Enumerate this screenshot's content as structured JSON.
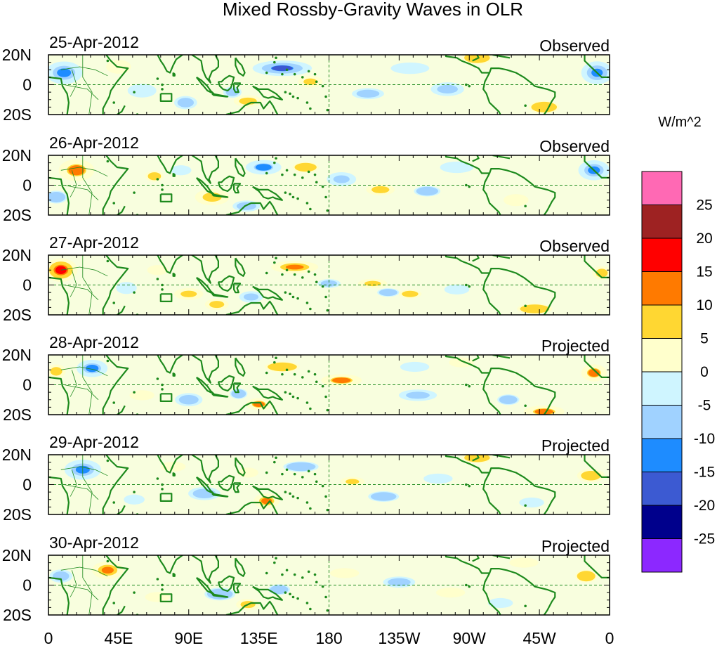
{
  "chart_data": {
    "type": "heatmap",
    "title": "Mixed Rossby-Gravity Waves in OLR",
    "colorbar": {
      "units": "W/m^2",
      "labels": [
        "25",
        "20",
        "15",
        "10",
        "5",
        "0",
        "-5",
        "-10",
        "-15",
        "-20",
        "-25"
      ],
      "colors": [
        "#ff69b4",
        "#9e2222",
        "#ff0000",
        "#ff7a00",
        "#ffd732",
        "#ffffcc",
        "#cff5ff",
        "#a0d2ff",
        "#1e8cff",
        "#3c5ad2",
        "#00008c",
        "#8c28ff"
      ]
    },
    "x_ticks": [
      "0",
      "45E",
      "90E",
      "135E",
      "180",
      "135W",
      "90W",
      "45W",
      "0"
    ],
    "y_ticks": [
      "20N",
      "0",
      "20S"
    ],
    "lat_range": [
      -20,
      20
    ],
    "lon_range": [
      0,
      360
    ],
    "panels": [
      {
        "date": "25-Apr-2012",
        "type": "Observed",
        "blobs": [
          {
            "lon": 10,
            "lat": 8,
            "v": -13,
            "w": 14,
            "h": 9
          },
          {
            "lon": 45,
            "lat": 12,
            "v": 5,
            "w": 12,
            "h": 7
          },
          {
            "lon": 88,
            "lat": -12,
            "v": -7,
            "w": 10,
            "h": 6
          },
          {
            "lon": 128,
            "lat": -11,
            "v": 8,
            "w": 12,
            "h": 5
          },
          {
            "lon": 118,
            "lat": -5,
            "v": -7,
            "w": 8,
            "h": 5
          },
          {
            "lon": 150,
            "lat": 11,
            "v": -16,
            "w": 22,
            "h": 6
          },
          {
            "lon": 168,
            "lat": 2,
            "v": 9,
            "w": 10,
            "h": 5
          },
          {
            "lon": 205,
            "lat": -6,
            "v": -7,
            "w": 14,
            "h": 5
          },
          {
            "lon": 256,
            "lat": -3,
            "v": -8,
            "w": 14,
            "h": 6
          },
          {
            "lon": 275,
            "lat": 18,
            "v": 6,
            "w": 14,
            "h": 6
          },
          {
            "lon": 318,
            "lat": -15,
            "v": 6,
            "w": 14,
            "h": 6
          },
          {
            "lon": 352,
            "lat": 8,
            "v": -14,
            "w": 12,
            "h": 9
          },
          {
            "lon": 60,
            "lat": -4,
            "v": -4,
            "w": 12,
            "h": 6
          },
          {
            "lon": 232,
            "lat": 11,
            "v": -4,
            "w": 16,
            "h": 5
          }
        ]
      },
      {
        "date": "26-Apr-2012",
        "type": "Observed",
        "blobs": [
          {
            "lon": 18,
            "lat": 10,
            "v": 11,
            "w": 14,
            "h": 9
          },
          {
            "lon": 5,
            "lat": -8,
            "v": -6,
            "w": 10,
            "h": 6
          },
          {
            "lon": 68,
            "lat": 6,
            "v": 7,
            "w": 8,
            "h": 5
          },
          {
            "lon": 105,
            "lat": -8,
            "v": 9,
            "w": 14,
            "h": 7
          },
          {
            "lon": 127,
            "lat": -14,
            "v": -7,
            "w": 12,
            "h": 5
          },
          {
            "lon": 138,
            "lat": 12,
            "v": -11,
            "w": 14,
            "h": 6
          },
          {
            "lon": 165,
            "lat": 12,
            "v": 6,
            "w": 12,
            "h": 5
          },
          {
            "lon": 188,
            "lat": 4,
            "v": -9,
            "w": 12,
            "h": 6
          },
          {
            "lon": 213,
            "lat": -3,
            "v": 8,
            "w": 12,
            "h": 5
          },
          {
            "lon": 243,
            "lat": -4,
            "v": -6,
            "w": 12,
            "h": 5
          },
          {
            "lon": 85,
            "lat": 10,
            "v": -5,
            "w": 10,
            "h": 5
          },
          {
            "lon": 350,
            "lat": 10,
            "v": -13,
            "w": 12,
            "h": 8
          },
          {
            "lon": 300,
            "lat": -10,
            "v": 5,
            "w": 12,
            "h": 6
          },
          {
            "lon": 262,
            "lat": 12,
            "v": -4,
            "w": 14,
            "h": 5
          }
        ]
      },
      {
        "date": "27-Apr-2012",
        "type": "Observed",
        "blobs": [
          {
            "lon": 8,
            "lat": 10,
            "v": 18,
            "w": 12,
            "h": 9
          },
          {
            "lon": 50,
            "lat": -2,
            "v": -5,
            "w": 10,
            "h": 6
          },
          {
            "lon": 90,
            "lat": -6,
            "v": 9,
            "w": 12,
            "h": 5
          },
          {
            "lon": 108,
            "lat": -13,
            "v": 8,
            "w": 10,
            "h": 5
          },
          {
            "lon": 130,
            "lat": -8,
            "v": -8,
            "w": 10,
            "h": 5
          },
          {
            "lon": 158,
            "lat": 12,
            "v": 13,
            "w": 18,
            "h": 5
          },
          {
            "lon": 180,
            "lat": 1,
            "v": -7,
            "w": 10,
            "h": 4
          },
          {
            "lon": 208,
            "lat": 1,
            "v": 9,
            "w": 12,
            "h": 4
          },
          {
            "lon": 218,
            "lat": -5,
            "v": -6,
            "w": 10,
            "h": 4
          },
          {
            "lon": 232,
            "lat": -6,
            "v": 7,
            "w": 10,
            "h": 4
          },
          {
            "lon": 262,
            "lat": -3,
            "v": -5,
            "w": 12,
            "h": 5
          },
          {
            "lon": 312,
            "lat": -16,
            "v": 6,
            "w": 16,
            "h": 5
          },
          {
            "lon": 355,
            "lat": 8,
            "v": 8,
            "w": 8,
            "h": 6
          },
          {
            "lon": 70,
            "lat": 10,
            "v": 5,
            "w": 10,
            "h": 5
          }
        ]
      },
      {
        "date": "28-Apr-2012",
        "type": "Projected",
        "blobs": [
          {
            "lon": 5,
            "lat": 9,
            "v": 8,
            "w": 8,
            "h": 6
          },
          {
            "lon": 28,
            "lat": 11,
            "v": -12,
            "w": 12,
            "h": 7
          },
          {
            "lon": 90,
            "lat": -10,
            "v": -7,
            "w": 12,
            "h": 6
          },
          {
            "lon": 122,
            "lat": -6,
            "v": -6,
            "w": 8,
            "h": 5
          },
          {
            "lon": 135,
            "lat": -13,
            "v": 11,
            "w": 10,
            "h": 5
          },
          {
            "lon": 150,
            "lat": 12,
            "v": 6,
            "w": 16,
            "h": 5
          },
          {
            "lon": 188,
            "lat": 3,
            "v": 11,
            "w": 16,
            "h": 5
          },
          {
            "lon": 237,
            "lat": -7,
            "v": -8,
            "w": 16,
            "h": 5
          },
          {
            "lon": 295,
            "lat": -10,
            "v": -6,
            "w": 10,
            "h": 5
          },
          {
            "lon": 318,
            "lat": -18,
            "v": 11,
            "w": 16,
            "h": 5
          },
          {
            "lon": 350,
            "lat": 8,
            "v": 11,
            "w": 10,
            "h": 7
          },
          {
            "lon": 235,
            "lat": 12,
            "v": -5,
            "w": 14,
            "h": 5
          },
          {
            "lon": 60,
            "lat": -7,
            "v": 5,
            "w": 12,
            "h": 5
          },
          {
            "lon": 265,
            "lat": 15,
            "v": 5,
            "w": 12,
            "h": 5
          }
        ]
      },
      {
        "date": "29-Apr-2012",
        "type": "Projected",
        "blobs": [
          {
            "lon": 22,
            "lat": 10,
            "v": -13,
            "w": 14,
            "h": 8
          },
          {
            "lon": 55,
            "lat": -10,
            "v": -5,
            "w": 10,
            "h": 5
          },
          {
            "lon": 100,
            "lat": -6,
            "v": -7,
            "w": 14,
            "h": 6
          },
          {
            "lon": 140,
            "lat": -11,
            "v": 12,
            "w": 10,
            "h": 6
          },
          {
            "lon": 162,
            "lat": 12,
            "v": -6,
            "w": 16,
            "h": 5
          },
          {
            "lon": 195,
            "lat": 2,
            "v": 9,
            "w": 10,
            "h": 4
          },
          {
            "lon": 215,
            "lat": -8,
            "v": -6,
            "w": 14,
            "h": 5
          },
          {
            "lon": 250,
            "lat": 4,
            "v": -5,
            "w": 14,
            "h": 5
          },
          {
            "lon": 275,
            "lat": 18,
            "v": 6,
            "w": 14,
            "h": 5
          },
          {
            "lon": 348,
            "lat": 6,
            "v": 7,
            "w": 12,
            "h": 6
          },
          {
            "lon": 310,
            "lat": -12,
            "v": -5,
            "w": 12,
            "h": 5
          },
          {
            "lon": 80,
            "lat": 12,
            "v": 5,
            "w": 12,
            "h": 5
          },
          {
            "lon": 128,
            "lat": 8,
            "v": 5,
            "w": 10,
            "h": 5
          }
        ]
      },
      {
        "date": "30-Apr-2012",
        "type": "Projected",
        "blobs": [
          {
            "lon": 38,
            "lat": 10,
            "v": 13,
            "w": 12,
            "h": 7
          },
          {
            "lon": 8,
            "lat": 6,
            "v": -7,
            "w": 10,
            "h": 6
          },
          {
            "lon": 110,
            "lat": -6,
            "v": -6,
            "w": 14,
            "h": 6
          },
          {
            "lon": 128,
            "lat": -13,
            "v": 8,
            "w": 10,
            "h": 5
          },
          {
            "lon": 148,
            "lat": -3,
            "v": -6,
            "w": 10,
            "h": 5
          },
          {
            "lon": 190,
            "lat": 8,
            "v": 5,
            "w": 14,
            "h": 5
          },
          {
            "lon": 225,
            "lat": 2,
            "v": -7,
            "w": 14,
            "h": 5
          },
          {
            "lon": 258,
            "lat": -5,
            "v": 5,
            "w": 14,
            "h": 5
          },
          {
            "lon": 290,
            "lat": -12,
            "v": -5,
            "w": 12,
            "h": 5
          },
          {
            "lon": 345,
            "lat": 6,
            "v": 6,
            "w": 10,
            "h": 6
          },
          {
            "lon": 305,
            "lat": 15,
            "v": 5,
            "w": 14,
            "h": 5
          },
          {
            "lon": 70,
            "lat": -8,
            "v": 5,
            "w": 12,
            "h": 5
          }
        ]
      }
    ]
  }
}
